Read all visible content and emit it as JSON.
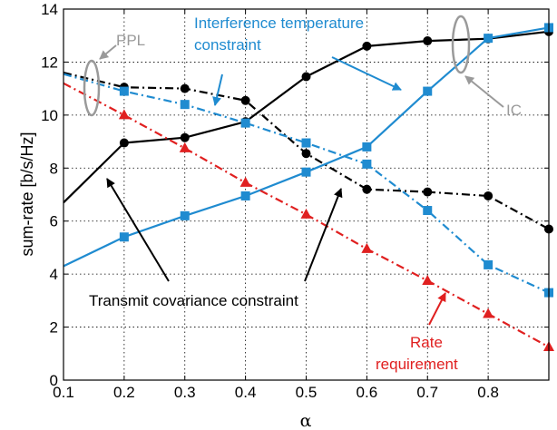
{
  "chart_data": {
    "type": "line",
    "xlabel": "α",
    "ylabel": "sum-rate [b/s/Hz]",
    "xlim": [
      0.1,
      0.9
    ],
    "ylim": [
      0,
      14
    ],
    "x_ticks": [
      0.1,
      0.2,
      0.3,
      0.4,
      0.5,
      0.6,
      0.7,
      0.8
    ],
    "x_tick_labels": [
      "0.1",
      "0.2",
      "0.3",
      "0.4",
      "0.5",
      "0.6",
      "0.7",
      "0.8"
    ],
    "y_ticks": [
      0,
      2,
      4,
      6,
      8,
      10,
      12,
      14
    ],
    "y_tick_labels": [
      "0",
      "2",
      "4",
      "6",
      "8",
      "10",
      "12",
      "14"
    ],
    "grid": true,
    "series": [
      {
        "id": "tcc-ic",
        "color": "#000000",
        "dash": "solid",
        "marker": "circle",
        "x": [
          0.1,
          0.2,
          0.3,
          0.4,
          0.5,
          0.6,
          0.7,
          0.8,
          0.9
        ],
        "y": [
          6.7,
          8.95,
          9.15,
          9.75,
          11.45,
          12.6,
          12.8,
          12.88,
          13.15
        ]
      },
      {
        "id": "tcc-ppl",
        "color": "#000000",
        "dash": "dashdot",
        "marker": "circle",
        "x": [
          0.1,
          0.2,
          0.3,
          0.4,
          0.5,
          0.6,
          0.7,
          0.8,
          0.9
        ],
        "y": [
          11.6,
          11.05,
          11.0,
          10.55,
          8.55,
          7.2,
          7.1,
          6.95,
          5.7
        ]
      },
      {
        "id": "itc-ic",
        "color": "#1f8bd0",
        "dash": "solid",
        "marker": "square",
        "x": [
          0.1,
          0.2,
          0.3,
          0.4,
          0.5,
          0.6,
          0.7,
          0.8,
          0.9
        ],
        "y": [
          4.3,
          5.4,
          6.2,
          6.95,
          7.85,
          8.8,
          10.9,
          12.9,
          13.3
        ]
      },
      {
        "id": "itc-ppl",
        "color": "#1f8bd0",
        "dash": "dashdot",
        "marker": "square",
        "x": [
          0.1,
          0.2,
          0.3,
          0.4,
          0.5,
          0.6,
          0.7,
          0.8,
          0.9
        ],
        "y": [
          11.55,
          10.9,
          10.4,
          9.7,
          8.95,
          8.15,
          6.4,
          4.35,
          3.3
        ]
      },
      {
        "id": "rate-req",
        "color": "#e02020",
        "dash": "dashdot",
        "marker": "triangle",
        "x": [
          0.1,
          0.2,
          0.3,
          0.4,
          0.5,
          0.6,
          0.7,
          0.8,
          0.9
        ],
        "y": [
          11.2,
          10.0,
          8.75,
          7.45,
          6.25,
          4.95,
          3.75,
          2.5,
          1.25
        ]
      }
    ],
    "annotations": {
      "ppl": {
        "text": "PPL",
        "color": "#9a9a9a"
      },
      "ic": {
        "text": "IC",
        "color": "#9a9a9a"
      },
      "interference_line1": {
        "text": "Interference temperature",
        "color": "#1f8bd0"
      },
      "interference_line2": {
        "text": "constraint",
        "color": "#1f8bd0"
      },
      "transmit": {
        "text": "Transmit covariance constraint",
        "color": "#000000"
      },
      "rate_line1": {
        "text": "Rate",
        "color": "#e02020"
      },
      "rate_line2": {
        "text": "requirement",
        "color": "#e02020"
      }
    }
  }
}
